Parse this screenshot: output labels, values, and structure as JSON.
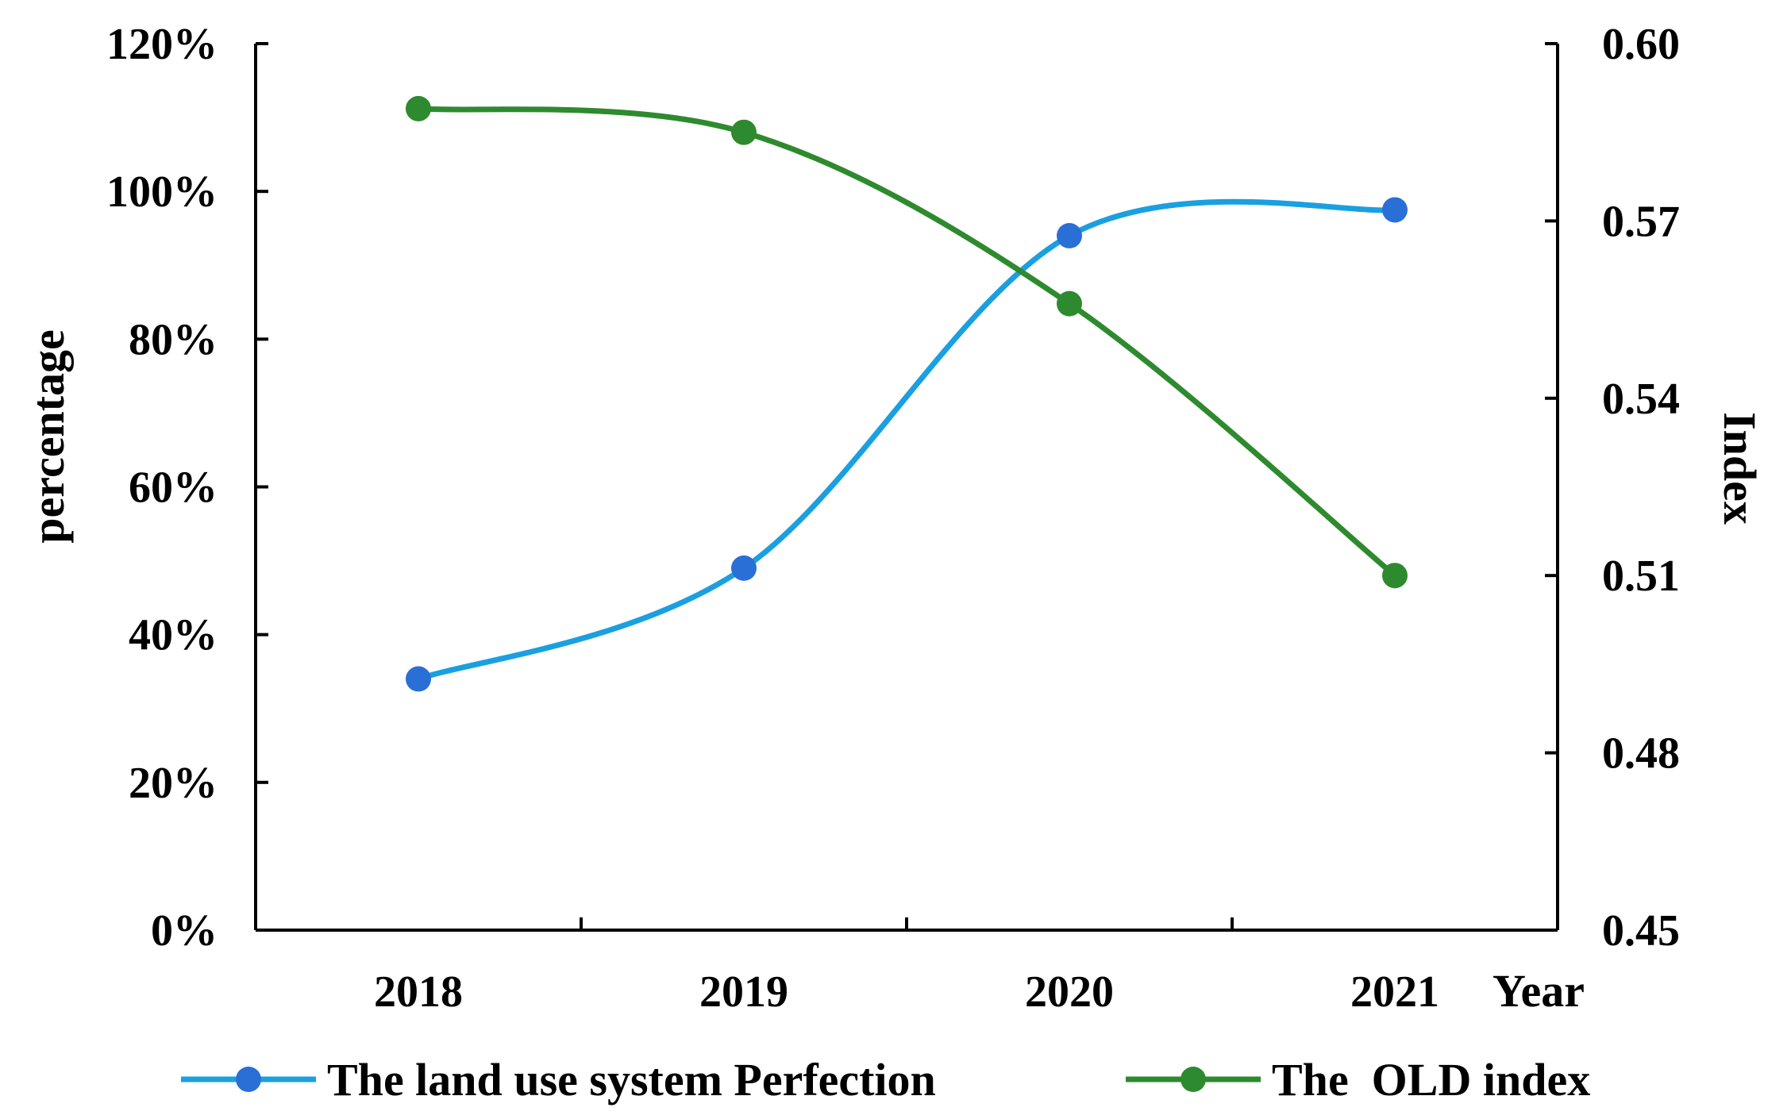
{
  "chart_data": {
    "type": "line",
    "categories": [
      "2018",
      "2019",
      "2020",
      "2021"
    ],
    "xlabel": "Year",
    "ylabel": "percentage",
    "y2label": "Index",
    "ylim": [
      0,
      1.2
    ],
    "y2lim": [
      0.45,
      0.6
    ],
    "y_ticks": [
      "0%",
      "20%",
      "40%",
      "60%",
      "80%",
      "100%",
      "120%"
    ],
    "y2_ticks": [
      "0.45",
      "0.48",
      "0.51",
      "0.54",
      "0.57",
      "0.60"
    ],
    "grid": false,
    "legend_position": "bottom",
    "series": [
      {
        "name": "The land use system Perfection",
        "axis": "left",
        "color": "#1aa0e0",
        "marker_color": "#2a6fd6",
        "values": [
          0.34,
          0.49,
          0.94,
          0.975
        ]
      },
      {
        "name": "The  OLD index",
        "axis": "right",
        "color": "#2e8a2e",
        "marker_color": "#2e8a2e",
        "values": [
          0.589,
          0.585,
          0.556,
          0.51
        ]
      }
    ]
  }
}
